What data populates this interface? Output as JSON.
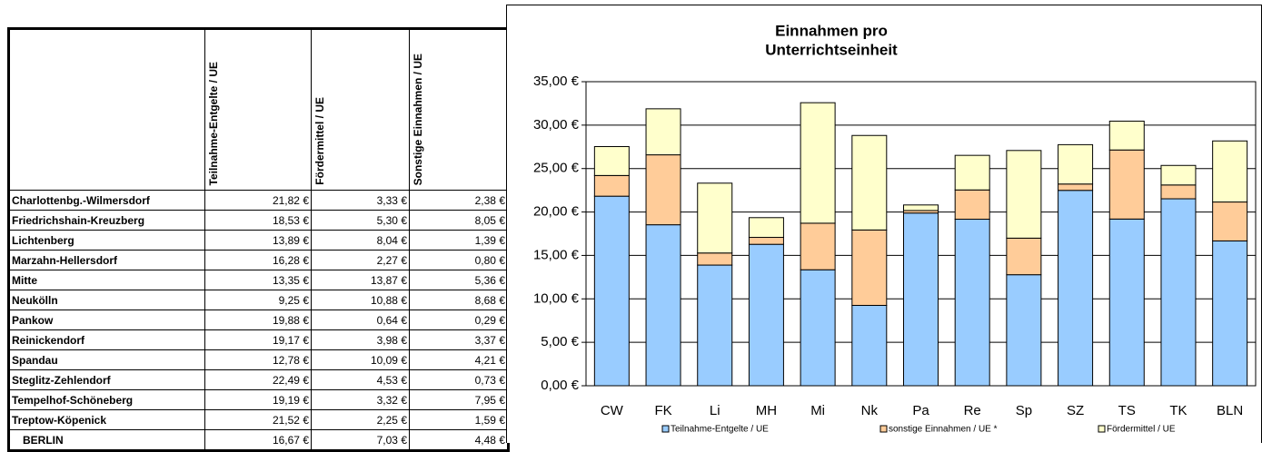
{
  "table": {
    "columns": [
      "Teilnahme-Entgelte / UE",
      "Fördermittel / UE",
      "Sonstige Einnahmen / UE"
    ],
    "rows": [
      [
        "Charlottenbg.-Wilmersdorf",
        "21,82 €",
        "3,33 €",
        "2,38 €"
      ],
      [
        "Friedrichshain-Kreuzberg",
        "18,53 €",
        "5,30 €",
        "8,05 €"
      ],
      [
        "Lichtenberg",
        "13,89 €",
        "8,04 €",
        "1,39 €"
      ],
      [
        "Marzahn-Hellersdorf",
        "16,28 €",
        "2,27 €",
        "0,80 €"
      ],
      [
        "Mitte",
        "13,35 €",
        "13,87 €",
        "5,36 €"
      ],
      [
        "Neukölln",
        "9,25 €",
        "10,88 €",
        "8,68 €"
      ],
      [
        "Pankow",
        "19,88 €",
        "0,64 €",
        "0,29 €"
      ],
      [
        "Reinickendorf",
        "19,17 €",
        "3,98 €",
        "3,37 €"
      ],
      [
        "Spandau",
        "12,78 €",
        "10,09 €",
        "4,21 €"
      ],
      [
        "Steglitz-Zehlendorf",
        "22,49 €",
        "4,53 €",
        "0,73 €"
      ],
      [
        "Tempelhof-Schöneberg",
        "19,19 €",
        "3,32 €",
        "7,95 €"
      ],
      [
        "Treptow-Köpenick",
        "21,52 €",
        "2,25 €",
        "1,59 €"
      ],
      [
        "BERLIN",
        "16,67 €",
        "7,03 €",
        "4,48 €"
      ]
    ]
  },
  "chart_data": {
    "type": "stacked_bar",
    "title": [
      "Einnahmen pro",
      "Unterrichtseinheit"
    ],
    "categories": [
      "CW",
      "FK",
      "Li",
      "MH",
      "Mi",
      "Nk",
      "Pa",
      "Re",
      "Sp",
      "SZ",
      "TS",
      "TK",
      "BLN"
    ],
    "series": [
      {
        "name": "Teilnahme-Entgelte / UE",
        "color": "#99ccff",
        "values": [
          21.82,
          18.53,
          13.89,
          16.28,
          13.35,
          9.25,
          19.88,
          19.17,
          12.78,
          22.49,
          19.19,
          21.52,
          16.67
        ]
      },
      {
        "name": "sonstige Einnahmen / UE *",
        "color": "#ffcc99",
        "values": [
          2.38,
          8.05,
          1.39,
          0.8,
          5.36,
          8.68,
          0.29,
          3.37,
          4.21,
          0.73,
          7.95,
          1.59,
          4.48
        ]
      },
      {
        "name": "Fördermittel / UE",
        "color": "#ffffcc",
        "values": [
          3.33,
          5.3,
          8.04,
          2.27,
          13.87,
          10.88,
          0.64,
          3.98,
          10.09,
          4.53,
          3.32,
          2.25,
          7.03
        ]
      }
    ],
    "ylim": [
      0,
      35
    ],
    "yticks": [
      {
        "value": 0,
        "label": "0,00 €"
      },
      {
        "value": 5,
        "label": "5,00 €"
      },
      {
        "value": 10,
        "label": "10,00 €"
      },
      {
        "value": 15,
        "label": "15,00 €"
      },
      {
        "value": 20,
        "label": "20,00 €"
      },
      {
        "value": 25,
        "label": "25,00 €"
      },
      {
        "value": 30,
        "label": "30,00 €"
      },
      {
        "value": 35,
        "label": "35,00 €"
      }
    ],
    "grid": true,
    "legend": "bottom"
  }
}
